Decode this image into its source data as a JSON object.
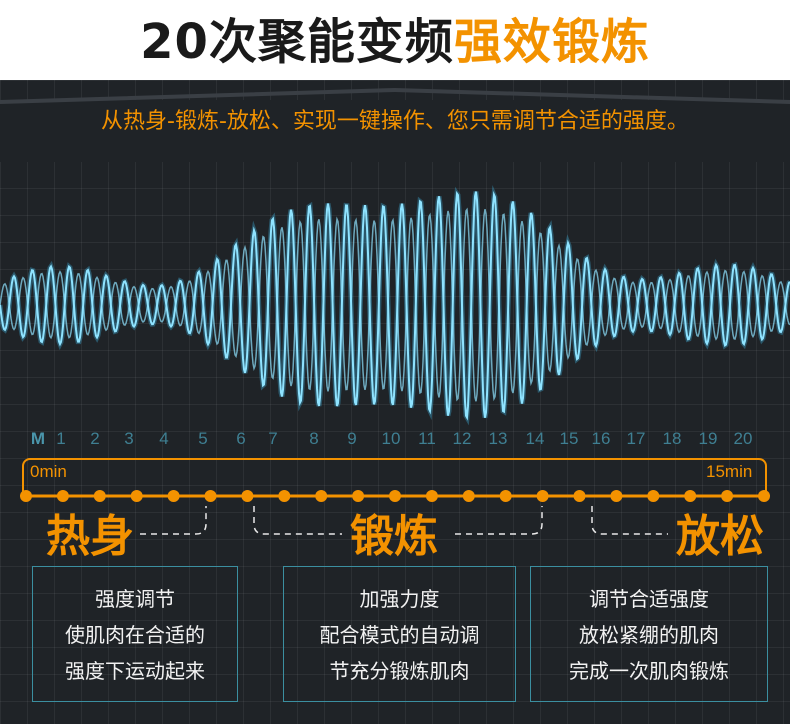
{
  "title": {
    "part1": "20次聚能变频",
    "part2": "强效锻炼"
  },
  "subtitle": "从热身-锻炼-放松、实现一键操作、您只需调节合适的强度。",
  "scale": {
    "labels": [
      "M",
      "1",
      "2",
      "3",
      "4",
      "5",
      "6",
      "7",
      "8",
      "9",
      "10",
      "11",
      "12",
      "13",
      "14",
      "15",
      "16",
      "17",
      "18",
      "19",
      "20"
    ],
    "start_label": "0min",
    "end_label": "15min"
  },
  "phases": {
    "warmup": "热身",
    "exercise": "锻炼",
    "relax": "放松"
  },
  "boxes": [
    {
      "lines": [
        "强度调节",
        "使肌肉在合适的",
        "强度下运动起来"
      ]
    },
    {
      "lines": [
        "加强力度",
        "配合模式的自动调",
        "节充分锻炼肌肉"
      ]
    },
    {
      "lines": [
        "调节合适强度",
        "放松紧绷的肌肉",
        "完成一次肌肉锻炼"
      ]
    }
  ],
  "colors": {
    "orange": "#f39200",
    "wave": "#8fe3ff",
    "panel": "#1f2327",
    "tick": "#3f7f92"
  }
}
